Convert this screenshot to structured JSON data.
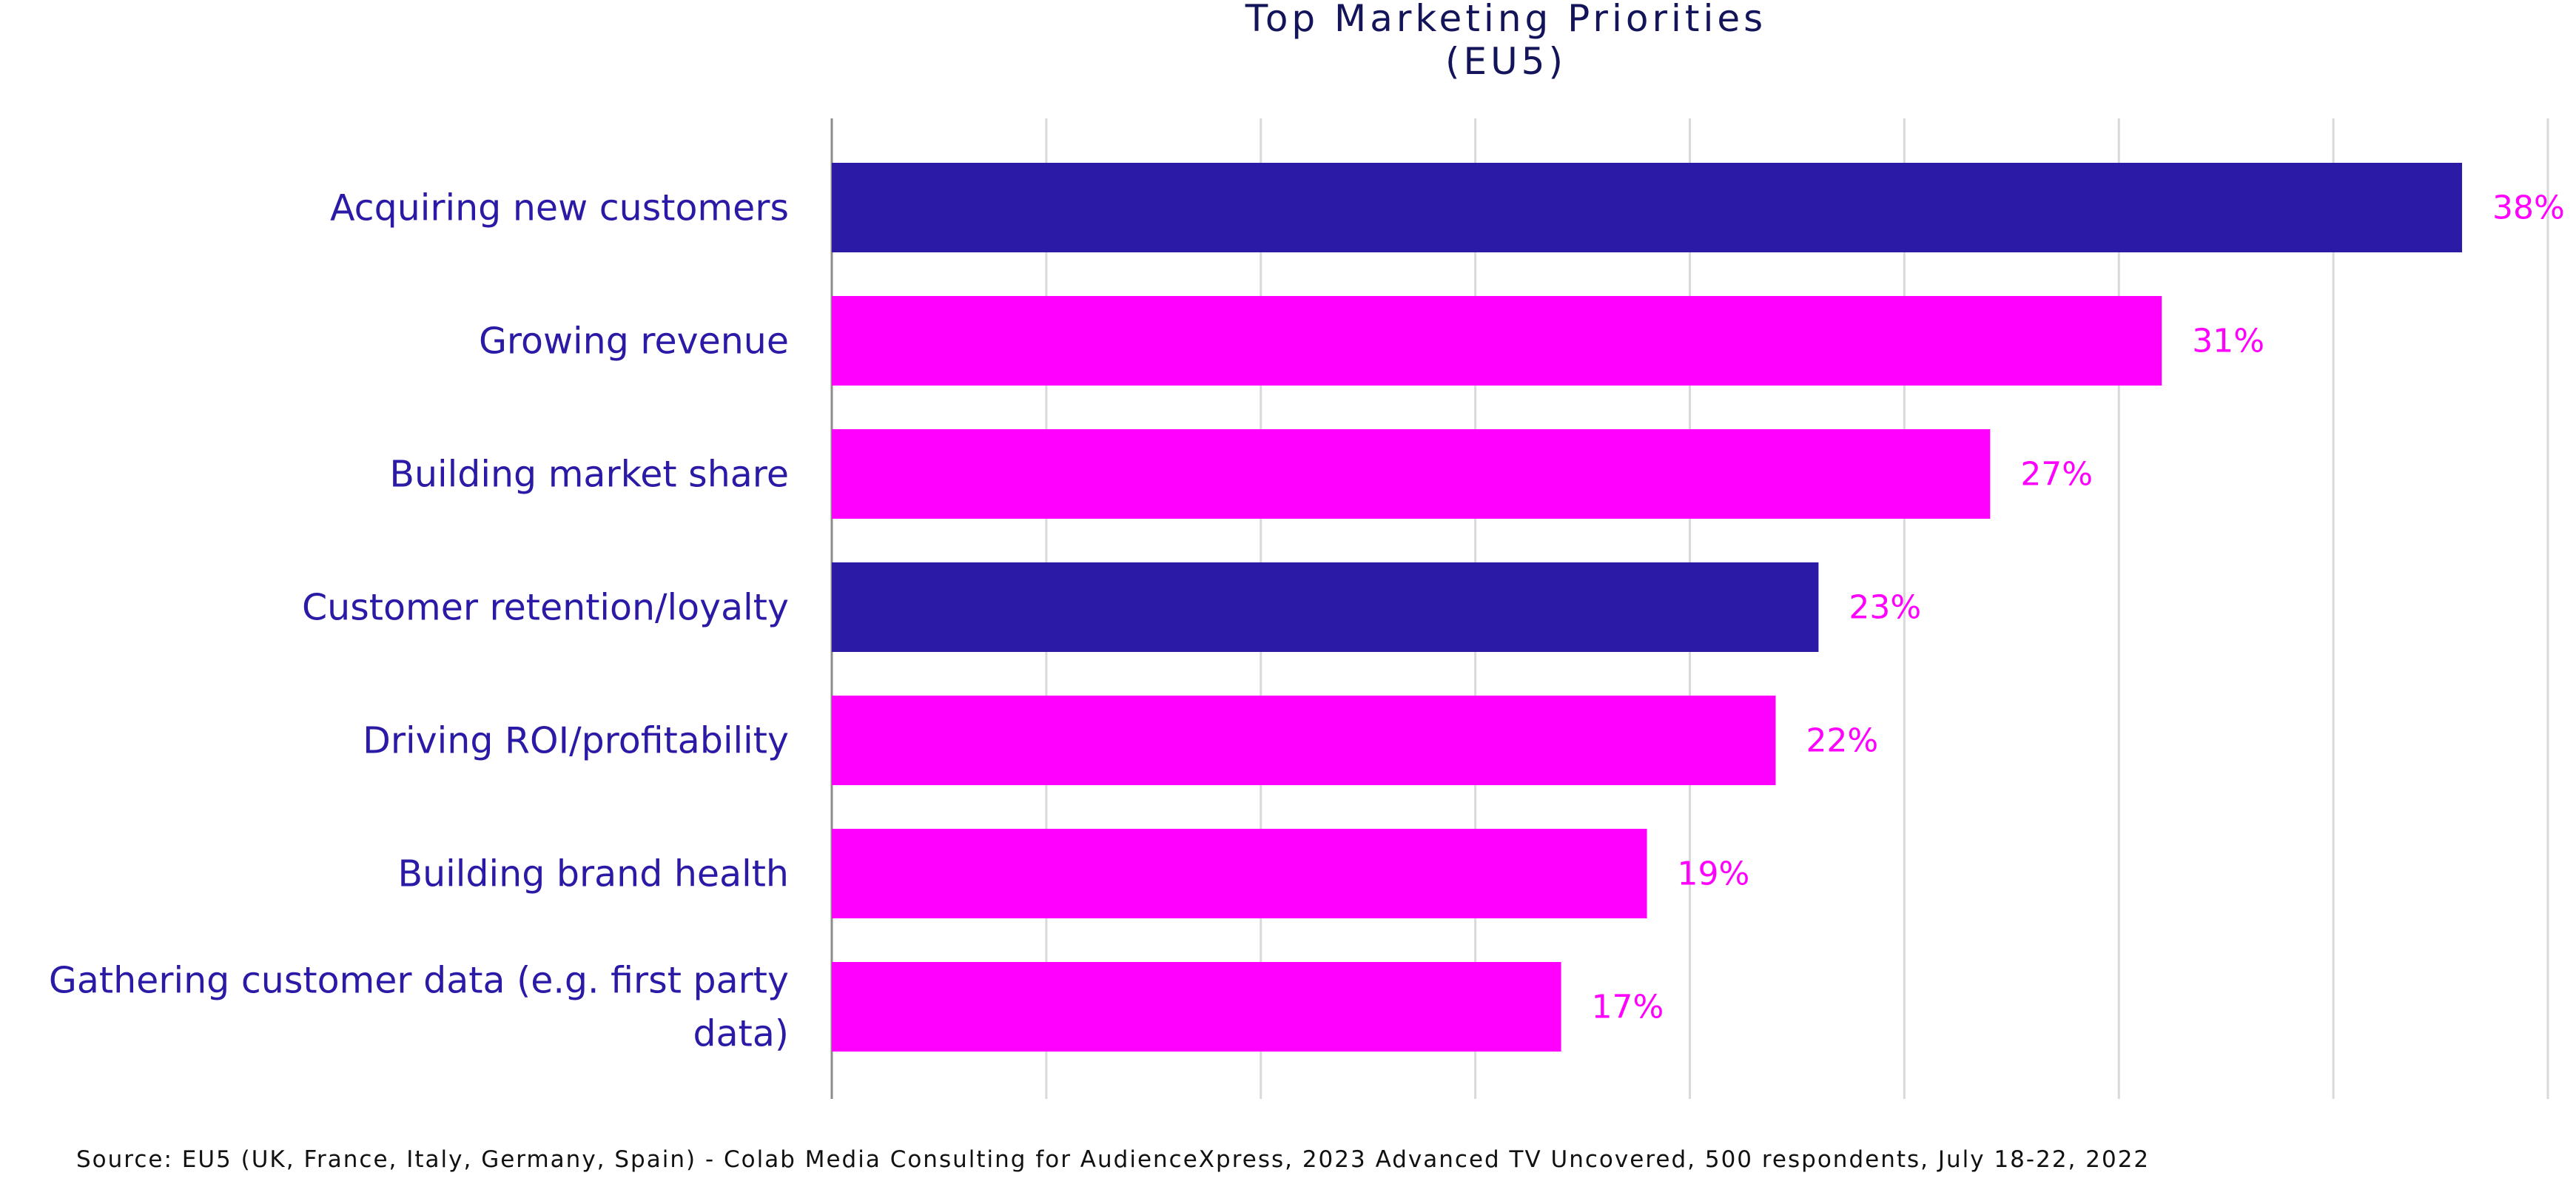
{
  "chart_data": {
    "type": "bar",
    "orientation": "horizontal",
    "title": "Top Marketing Priorities",
    "subtitle": "(EU5)",
    "categories": [
      [
        "Acquiring new customers"
      ],
      [
        "Growing revenue"
      ],
      [
        "Building market share"
      ],
      [
        "Customer retention/loyalty"
      ],
      [
        "Driving ROI/profitability"
      ],
      [
        "Building brand health"
      ],
      [
        "Gathering customer data (e.g. first party",
        "data)"
      ]
    ],
    "values": [
      38,
      31,
      27,
      23,
      22,
      19,
      17
    ],
    "value_labels": [
      "38%",
      "31%",
      "27%",
      "23%",
      "22%",
      "19%",
      "17%"
    ],
    "highlighted": [
      true,
      false,
      false,
      true,
      false,
      false,
      false
    ],
    "xlim": [
      0,
      40
    ],
    "grid": true,
    "colors": {
      "highlight": "#2a1aa6",
      "default": "#ff00ff",
      "label": "#ff00ff",
      "category_text": "#2a1aa6",
      "title": "#14145a",
      "gridline": "#d9d9d9",
      "axis": "#8c8c8c"
    }
  },
  "footer": {
    "source": "Source: EU5 (UK, France, Italy, Germany, Spain) -  Colab Media Consulting for AudienceXpress, 2023 Advanced TV Uncovered, 500 respondents, July 18-22, 2022"
  }
}
